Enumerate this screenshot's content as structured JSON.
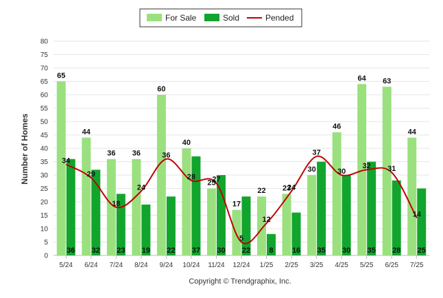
{
  "chart_data": {
    "type": "bar",
    "categories": [
      "5/24",
      "6/24",
      "7/24",
      "8/24",
      "9/24",
      "10/24",
      "11/24",
      "12/24",
      "1/25",
      "2/25",
      "3/25",
      "4/25",
      "5/25",
      "6/25",
      "7/25"
    ],
    "series": [
      {
        "name": "For Sale",
        "type": "bar",
        "color": "#9be07f",
        "values": [
          65,
          44,
          36,
          36,
          60,
          40,
          25,
          17,
          22,
          23,
          30,
          46,
          64,
          63,
          44
        ]
      },
      {
        "name": "Sold",
        "type": "bar",
        "color": "#12a52e",
        "values": [
          36,
          32,
          23,
          19,
          22,
          37,
          30,
          22,
          8,
          16,
          35,
          30,
          35,
          28,
          25
        ]
      },
      {
        "name": "Pended",
        "type": "line",
        "color": "#c00000",
        "values": [
          34,
          29,
          18,
          24,
          36,
          28,
          27,
          5,
          12,
          24,
          37,
          30,
          32,
          31,
          14
        ]
      }
    ],
    "xlabel": "",
    "ylabel": "Number of Homes",
    "ylim": [
      0,
      80
    ],
    "yticks": [
      0,
      5,
      10,
      15,
      20,
      25,
      30,
      35,
      40,
      45,
      50,
      55,
      60,
      65,
      70,
      75,
      80
    ],
    "grid": true,
    "legend": "top-center"
  },
  "footer": {
    "copyright": "Copyright © Trendgraphix, Inc."
  }
}
